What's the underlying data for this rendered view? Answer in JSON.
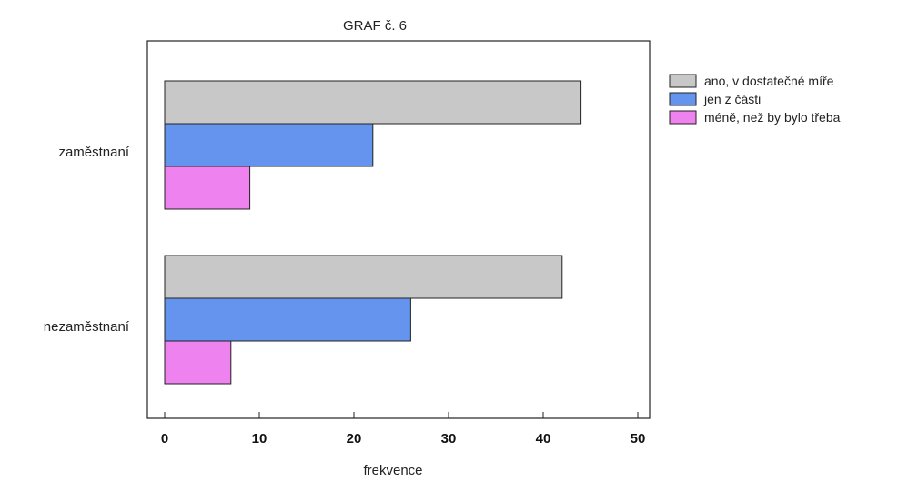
{
  "chart_data": {
    "type": "bar",
    "orientation": "horizontal",
    "title": "GRAF č. 6",
    "xlabel": "frekvence",
    "ylabel": "",
    "xlim": [
      0,
      50
    ],
    "xticks": [
      0,
      10,
      20,
      30,
      40,
      50
    ],
    "grid": false,
    "legend_position": "right",
    "categories": [
      "zaměstnaní",
      "nezaměstnaní"
    ],
    "series": [
      {
        "name": "ano, v dostatečné míře",
        "color": "#c8c8c8",
        "values": [
          44,
          42
        ]
      },
      {
        "name": "jen z části",
        "color": "#6494ed",
        "values": [
          22,
          26
        ]
      },
      {
        "name": "méně, než by bylo třeba",
        "color": "#ee82ee",
        "values": [
          9,
          7
        ]
      }
    ]
  }
}
